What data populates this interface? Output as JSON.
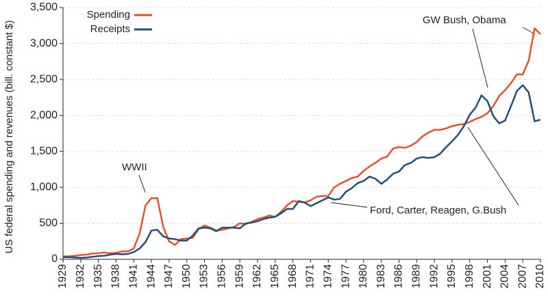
{
  "chart_data": {
    "type": "line",
    "y_label": "US federal spending and revenues (bill. constant $)",
    "annotations": [
      "WWII",
      "GW Bush, Obama",
      "Ford, Carter, Reagen, G.Bush"
    ],
    "legend": "top-left",
    "grid": true,
    "x": [
      1929,
      1930,
      1931,
      1932,
      1933,
      1934,
      1935,
      1936,
      1937,
      1938,
      1939,
      1940,
      1941,
      1942,
      1943,
      1944,
      1945,
      1946,
      1947,
      1948,
      1949,
      1950,
      1951,
      1952,
      1953,
      1954,
      1955,
      1956,
      1957,
      1958,
      1959,
      1960,
      1961,
      1962,
      1963,
      1964,
      1965,
      1966,
      1967,
      1968,
      1969,
      1970,
      1971,
      1972,
      1973,
      1974,
      1975,
      1976,
      1977,
      1978,
      1979,
      1980,
      1981,
      1982,
      1983,
      1984,
      1985,
      1986,
      1987,
      1988,
      1989,
      1990,
      1991,
      1992,
      1993,
      1994,
      1995,
      1996,
      1997,
      1998,
      1999,
      2000,
      2001,
      2002,
      2003,
      2004,
      2005,
      2006,
      2007,
      2008,
      2009,
      2010
    ],
    "series": [
      {
        "name": "Spending",
        "color": "#e8502a",
        "values": [
          40,
          40,
          50,
          60,
          65,
          80,
          85,
          95,
          85,
          90,
          110,
          110,
          150,
          360,
          750,
          850,
          850,
          450,
          250,
          200,
          280,
          290,
          300,
          420,
          470,
          440,
          400,
          410,
          430,
          450,
          500,
          490,
          520,
          560,
          580,
          610,
          590,
          660,
          750,
          810,
          800,
          790,
          820,
          870,
          880,
          880,
          1000,
          1050,
          1090,
          1130,
          1150,
          1230,
          1290,
          1340,
          1400,
          1430,
          1540,
          1560,
          1550,
          1580,
          1630,
          1710,
          1760,
          1800,
          1800,
          1820,
          1850,
          1870,
          1880,
          1910,
          1950,
          1980,
          2030,
          2130,
          2270,
          2350,
          2450,
          2570,
          2570,
          2760,
          3210,
          3130
        ]
      },
      {
        "name": "Receipts",
        "color": "#1f4e79",
        "values": [
          30,
          30,
          25,
          20,
          25,
          35,
          45,
          50,
          65,
          75,
          70,
          75,
          100,
          150,
          240,
          400,
          410,
          320,
          290,
          280,
          260,
          260,
          330,
          430,
          440,
          430,
          390,
          440,
          440,
          440,
          430,
          500,
          510,
          530,
          560,
          580,
          590,
          640,
          700,
          700,
          810,
          790,
          740,
          780,
          820,
          860,
          830,
          840,
          940,
          990,
          1060,
          1090,
          1150,
          1120,
          1050,
          1110,
          1190,
          1220,
          1310,
          1340,
          1400,
          1420,
          1410,
          1420,
          1470,
          1560,
          1640,
          1730,
          1850,
          2010,
          2110,
          2280,
          2200,
          1990,
          1890,
          1930,
          2130,
          2340,
          2420,
          2320,
          1920,
          1940
        ]
      }
    ],
    "xlim": [
      1929,
      2010
    ],
    "xticks": [
      1929,
      1932,
      1935,
      1938,
      1941,
      1944,
      1947,
      1950,
      1953,
      1956,
      1959,
      1962,
      1965,
      1968,
      1971,
      1974,
      1977,
      1980,
      1983,
      1986,
      1989,
      1992,
      1995,
      1998,
      2001,
      2004,
      2007,
      2010
    ],
    "ylim": [
      0,
      3500
    ],
    "yticks": [
      0,
      500,
      {
        "value": 1000,
        "label": "1,000"
      },
      {
        "value": 1500,
        "label": "1,500"
      },
      {
        "value": 2000,
        "label": "2,000"
      },
      {
        "value": 2500,
        "label": "2,500"
      },
      {
        "value": 3000,
        "label": "3,000"
      },
      {
        "value": 3500,
        "label": "3,500"
      }
    ]
  }
}
